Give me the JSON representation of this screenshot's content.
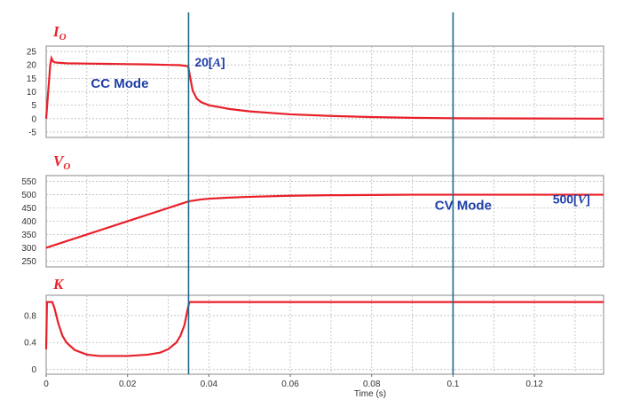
{
  "chart_data": [
    {
      "type": "line",
      "title_main": "I",
      "title_sub": "O",
      "ylim": [
        -7,
        27
      ],
      "yticks": [
        -5,
        0,
        5,
        10,
        15,
        20,
        25
      ],
      "xlim": [
        0,
        0.137
      ],
      "grid": true,
      "series": [
        {
          "color": "#e8202a",
          "x": [
            0,
            0.0003,
            0.0007,
            0.001,
            0.0013,
            0.0016,
            0.002,
            0.003,
            0.005,
            0.01,
            0.015,
            0.02,
            0.025,
            0.03,
            0.033,
            0.0349,
            0.0352,
            0.036,
            0.037,
            0.038,
            0.04,
            0.045,
            0.05,
            0.06,
            0.07,
            0.08,
            0.09,
            0.1,
            0.11,
            0.12,
            0.137
          ],
          "y": [
            0,
            6,
            14,
            20,
            22.5,
            21.5,
            21,
            20.8,
            20.6,
            20.5,
            20.4,
            20.3,
            20.2,
            20.0,
            19.9,
            19.5,
            17,
            10.5,
            7.5,
            6.2,
            5.0,
            3.6,
            2.7,
            1.6,
            1.0,
            0.6,
            0.3,
            0.15,
            0.1,
            0.05,
            0.0
          ]
        }
      ],
      "annotations": [
        {
          "text": "20",
          "unit": "A",
          "x": 0.0365,
          "y": 19.4
        },
        {
          "text": "CC Mode",
          "x": 0.011,
          "y": 11.5
        }
      ]
    },
    {
      "type": "line",
      "title_main": "V",
      "title_sub": "O",
      "ylim": [
        228,
        572
      ],
      "yticks": [
        250,
        300,
        350,
        400,
        450,
        500,
        550
      ],
      "xlim": [
        0,
        0.137
      ],
      "grid": true,
      "series": [
        {
          "color": "#e8202a",
          "x": [
            0,
            0.035,
            0.038,
            0.04,
            0.045,
            0.05,
            0.06,
            0.07,
            0.08,
            0.09,
            0.1,
            0.11,
            0.12,
            0.137
          ],
          "y": [
            300,
            475,
            482,
            485,
            489,
            492,
            496,
            498,
            499,
            500,
            500,
            500,
            500,
            500
          ]
        }
      ],
      "annotations": [
        {
          "text": "500",
          "unit": "V",
          "x": 0.1245,
          "y": 467
        },
        {
          "text": "CV Mode",
          "x": 0.0955,
          "y": 443
        }
      ]
    },
    {
      "type": "line",
      "title_main": "K",
      "title_sub": "",
      "ylim": [
        -0.07,
        1.1
      ],
      "yticks": [
        0,
        0.4,
        0.8
      ],
      "ytick_labels": [
        "0",
        "0.4",
        "0.8"
      ],
      "xlim": [
        0,
        0.137
      ],
      "xticks": [
        0,
        0.02,
        0.04,
        0.06,
        0.08,
        0.1,
        0.12
      ],
      "xtick_labels": [
        "0",
        "0.02",
        "0.04",
        "0.06",
        "0.08",
        "0.1",
        "0.12"
      ],
      "xlabel": "Time (s)",
      "grid": true,
      "series": [
        {
          "color": "#e8202a",
          "x": [
            0,
            0.0002,
            0.0004,
            0.0015,
            0.002,
            0.003,
            0.004,
            0.005,
            0.007,
            0.01,
            0.013,
            0.015,
            0.02,
            0.025,
            0.028,
            0.03,
            0.032,
            0.033,
            0.034,
            0.0348,
            0.0352,
            0.04,
            0.06,
            0.08,
            0.1,
            0.12,
            0.137
          ],
          "y": [
            0.3,
            1.0,
            1.0,
            1.0,
            0.92,
            0.68,
            0.5,
            0.4,
            0.29,
            0.22,
            0.2,
            0.2,
            0.2,
            0.22,
            0.25,
            0.3,
            0.4,
            0.5,
            0.66,
            0.9,
            1.0,
            1.0,
            1.0,
            1.0,
            1.0,
            1.0,
            1.0
          ]
        }
      ]
    }
  ],
  "markers": [
    0.035,
    0.1
  ],
  "colors": {
    "curve": "#e8202a",
    "marker": "#1d6a8c",
    "annotation": "#1f3ea8",
    "grid": "#bbbbbb"
  }
}
